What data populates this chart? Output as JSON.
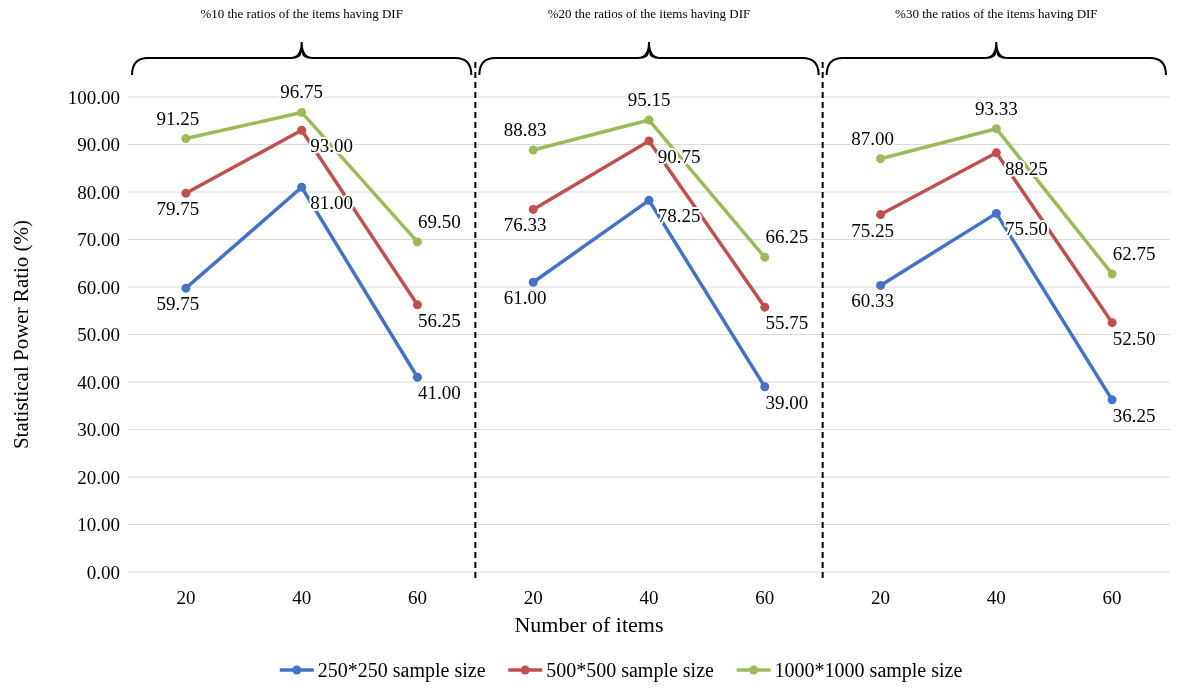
{
  "chart_data": [
    {
      "type": "line",
      "title": "%10 the ratios of the items having DIF",
      "ylabel": "Statistical Power Ratio (%)",
      "categories": [
        "20",
        "40",
        "60"
      ],
      "ylim": [
        0,
        100
      ],
      "yticks": [
        {
          "value": 0,
          "label": "0.00"
        },
        {
          "value": 10,
          "label": "10.00"
        },
        {
          "value": 20,
          "label": "20.00"
        },
        {
          "value": 30,
          "label": "30.00"
        },
        {
          "value": 40,
          "label": "40.00"
        },
        {
          "value": 50,
          "label": "50.00"
        },
        {
          "value": 60,
          "label": "60.00"
        },
        {
          "value": 70,
          "label": "70.00"
        },
        {
          "value": 80,
          "label": "80.00"
        },
        {
          "value": 90,
          "label": "90.00"
        },
        {
          "value": 100,
          "label": "100.00"
        }
      ],
      "grid": "y",
      "marker": "circle",
      "legend": "bottom",
      "series": [
        {
          "name": "250*250 sample size",
          "color": "#4472c4",
          "values": [
            59.75,
            81,
            41
          ],
          "value_labels": [
            "59.75",
            "81.00",
            "41.00"
          ]
        },
        {
          "name": "500*500 sample size",
          "color": "#c0504d",
          "values": [
            79.75,
            93,
            56.25
          ],
          "value_labels": [
            "79.75",
            "93.00",
            "56.25"
          ]
        },
        {
          "name": "1000*1000 sample size",
          "color": "#9bbb59",
          "values": [
            91.25,
            96.75,
            69.5
          ],
          "value_labels": [
            "91.25",
            "96.75",
            "69.50"
          ]
        }
      ]
    },
    {
      "type": "line",
      "title": "%20 the ratios of the items having DIF",
      "xlabel": "Number of items",
      "categories": [
        "20",
        "40",
        "60"
      ],
      "ylim": [
        0,
        100
      ],
      "yticks": [
        0,
        10,
        20,
        30,
        40,
        50,
        60,
        70,
        80,
        90,
        100
      ],
      "grid": "y",
      "marker": "circle",
      "tick_labels": "x",
      "series": [
        {
          "color": "#4472c4",
          "values": [
            61,
            78.25,
            39
          ],
          "value_labels": [
            "61.00",
            "78.25",
            "39.00"
          ]
        },
        {
          "color": "#c0504d",
          "values": [
            76.33,
            90.75,
            55.75
          ],
          "value_labels": [
            "76.33",
            "90.75",
            "55.75"
          ]
        },
        {
          "color": "#9bbb59",
          "values": [
            88.83,
            95.15,
            66.25
          ],
          "value_labels": [
            "88.83",
            "95.15",
            "66.25"
          ]
        }
      ]
    },
    {
      "type": "line",
      "title": "%30 the ratios of the items having DIF",
      "categories": [
        "20",
        "40",
        "60"
      ],
      "ylim": [
        0,
        100
      ],
      "yticks": [
        0,
        10,
        20,
        30,
        40,
        50,
        60,
        70,
        80,
        90,
        100
      ],
      "grid": "y",
      "marker": "circle",
      "tick_labels": "x",
      "series": [
        {
          "color": "#4472c4",
          "values": [
            60.33,
            75.5,
            36.25
          ],
          "value_labels": [
            "60.33",
            "75.50",
            "36.25"
          ]
        },
        {
          "color": "#c0504d",
          "values": [
            75.25,
            88.25,
            52.5
          ],
          "value_labels": [
            "75.25",
            "88.25",
            "52.50"
          ]
        },
        {
          "color": "#9bbb59",
          "values": [
            87,
            93.33,
            62.75
          ],
          "value_labels": [
            "87.00",
            "93.33",
            "62.75"
          ]
        }
      ]
    }
  ]
}
